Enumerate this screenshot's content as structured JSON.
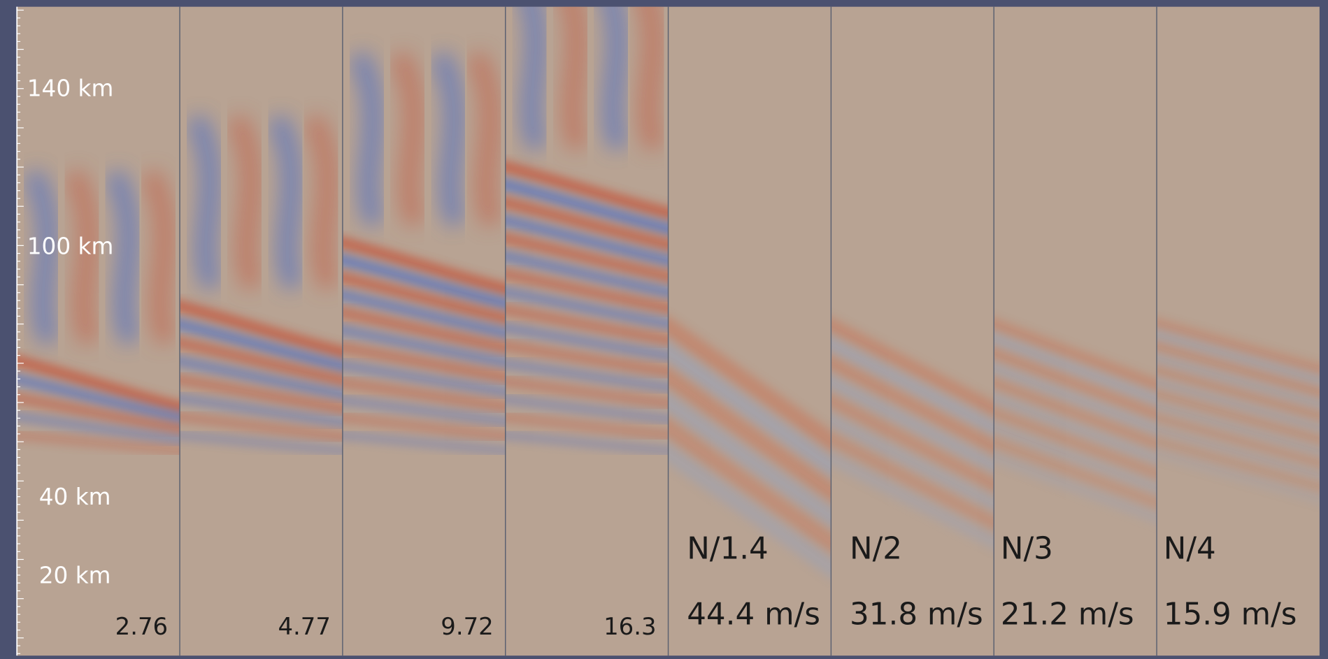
{
  "y_axis": {
    "labels": [
      "140 km",
      "100 km",
      "40 km",
      "20 km"
    ]
  },
  "panels": [
    {
      "value": "2.76"
    },
    {
      "value": "4.77"
    },
    {
      "value": "9.72"
    },
    {
      "value": "16.3"
    },
    {
      "label": "N/1.4",
      "speed": "44.4 m/s"
    },
    {
      "label": "N/2",
      "speed": "31.8 m/s"
    },
    {
      "label": "N/3",
      "speed": "21.2 m/s"
    },
    {
      "label": "N/4",
      "speed": "15.9 m/s"
    }
  ]
}
